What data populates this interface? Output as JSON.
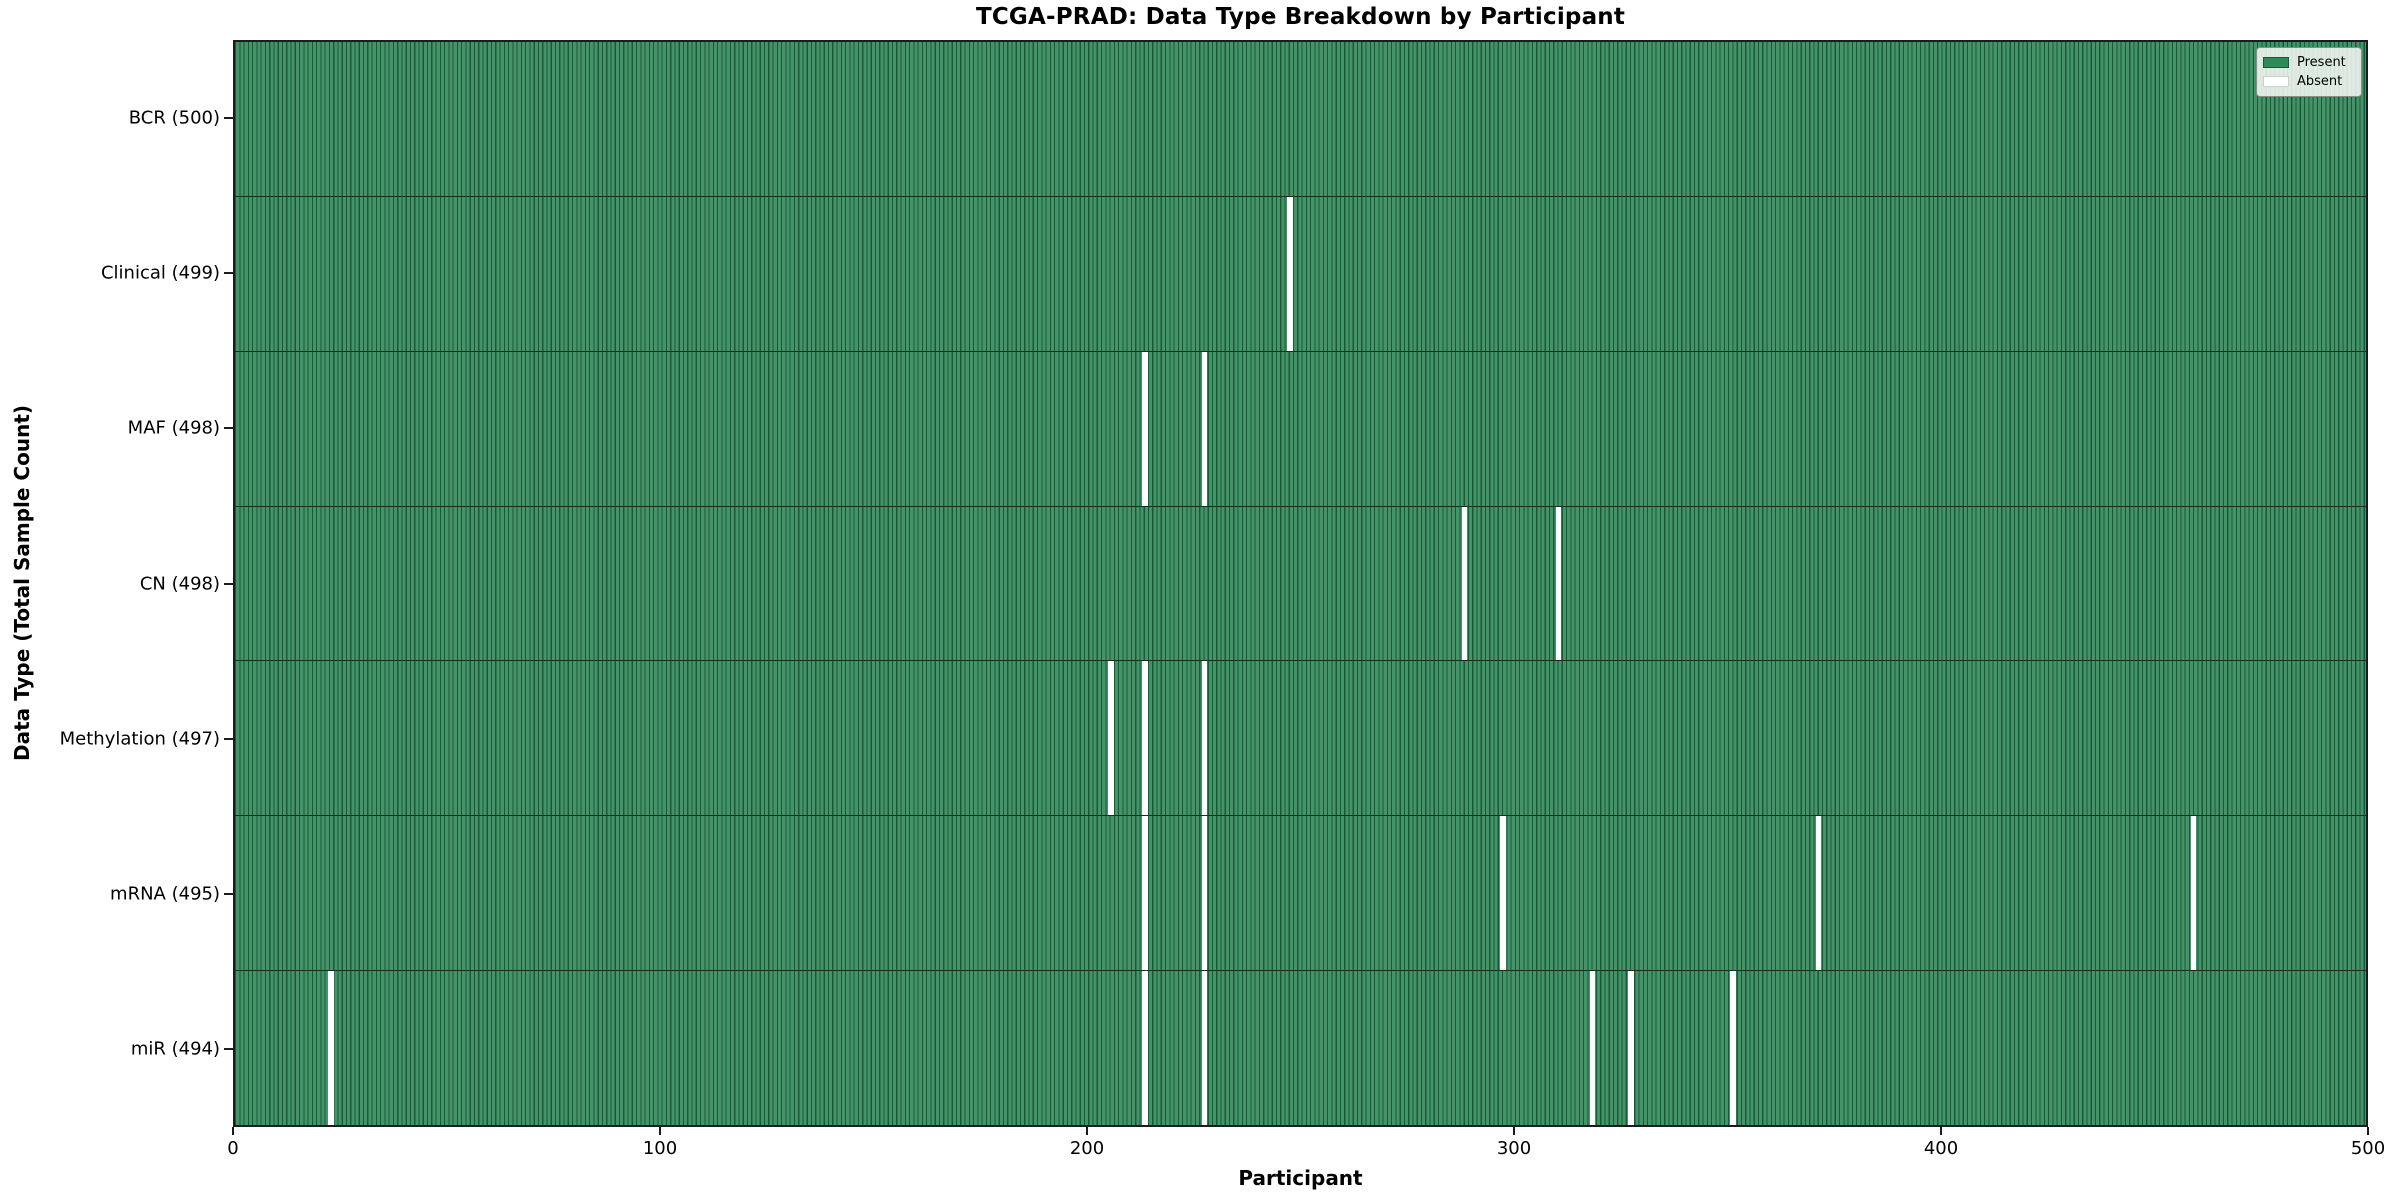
{
  "title": "TCGA-PRAD: Data Type Breakdown by Participant",
  "xlabel": "Participant",
  "ylabel": "Data Type (Total Sample Count)",
  "legend": {
    "present_label": "Present",
    "absent_label": "Absent"
  },
  "colors": {
    "present": "#2e8b57",
    "absent": "#ffffff",
    "cell_fill": "#449469",
    "cell_edge": "#1d5737"
  },
  "chart_data": {
    "type": "heatmap",
    "title": "TCGA-PRAD: Data Type Breakdown by Participant",
    "xlabel": "Participant",
    "ylabel": "Data Type (Total Sample Count)",
    "x_range": [
      0,
      500
    ],
    "n_participants": 500,
    "x_ticks": [
      0,
      100,
      200,
      300,
      400,
      500
    ],
    "legend_position": "upper right",
    "value_legend": {
      "present": "Present",
      "absent": "Absent"
    },
    "rows": [
      {
        "label": "BCR (500)",
        "data_type": "BCR",
        "total": 500,
        "absent_participants": []
      },
      {
        "label": "Clinical (499)",
        "data_type": "Clinical",
        "total": 499,
        "absent_participants": [
          247
        ]
      },
      {
        "label": "MAF (498)",
        "data_type": "MAF",
        "total": 498,
        "absent_participants": [
          213,
          227
        ]
      },
      {
        "label": "CN (498)",
        "data_type": "CN",
        "total": 498,
        "absent_participants": [
          288,
          310
        ]
      },
      {
        "label": "Methylation (497)",
        "data_type": "Methylation",
        "total": 497,
        "absent_participants": [
          205,
          213,
          227
        ]
      },
      {
        "label": "mRNA (495)",
        "data_type": "mRNA",
        "total": 495,
        "absent_participants": [
          213,
          227,
          297,
          371,
          459
        ]
      },
      {
        "label": "miR (494)",
        "data_type": "miR",
        "total": 494,
        "absent_participants": [
          22,
          213,
          227,
          318,
          327,
          351
        ]
      }
    ]
  }
}
